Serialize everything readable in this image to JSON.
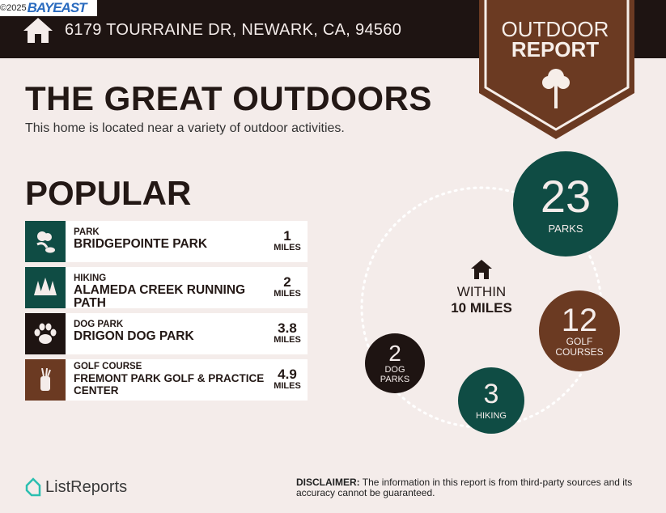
{
  "header": {
    "copyright": "©2025",
    "logo": "BAYEAST",
    "address": "6179 TOURRAINE DR, NEWARK, CA, 94560",
    "home_icon": "house-icon"
  },
  "badge": {
    "line1": "OUTDOOR",
    "line2": "REPORT",
    "icon": "tree-icon"
  },
  "title": "THE GREAT OUTDOORS",
  "subtitle": "This home is located near a variety of outdoor activities.",
  "popular": {
    "heading": "POPULAR",
    "items": [
      {
        "category": "PARK",
        "name": "BRIDGEPOINTE PARK",
        "distance": "1",
        "unit": "MILES",
        "icon": "park-icon",
        "color": "#0f4c44"
      },
      {
        "category": "HIKING",
        "name": "ALAMEDA CREEK RUNNING PATH",
        "distance": "2",
        "unit": "MILES",
        "icon": "trees-icon",
        "color": "#0f4c44"
      },
      {
        "category": "DOG PARK",
        "name": "DRIGON DOG PARK",
        "distance": "3.8",
        "unit": "MILES",
        "icon": "paw-icon",
        "color": "#1e1412"
      },
      {
        "category": "GOLF COURSE",
        "name": "FREMONT PARK GOLF & PRACTICE CENTER",
        "distance": "4.9",
        "unit": "MILES",
        "icon": "golf-bag-icon",
        "color": "#6b3a22"
      }
    ]
  },
  "summary": {
    "within_line1": "WITHIN",
    "within_line2": "10 MILES",
    "counts": [
      {
        "value": "23",
        "label": "PARKS",
        "color": "#0f4c44"
      },
      {
        "value": "12",
        "label": "GOLF COURSES",
        "color": "#6b3a22"
      },
      {
        "value": "3",
        "label": "HIKING",
        "color": "#0f4c44"
      },
      {
        "value": "2",
        "label": "DOG PARKS",
        "color": "#1e1412"
      }
    ]
  },
  "footer": {
    "brand": "ListReports",
    "disclaimer_label": "DISCLAIMER:",
    "disclaimer_text": " The information in this report is from third-party sources and its accuracy cannot be guaranteed."
  }
}
